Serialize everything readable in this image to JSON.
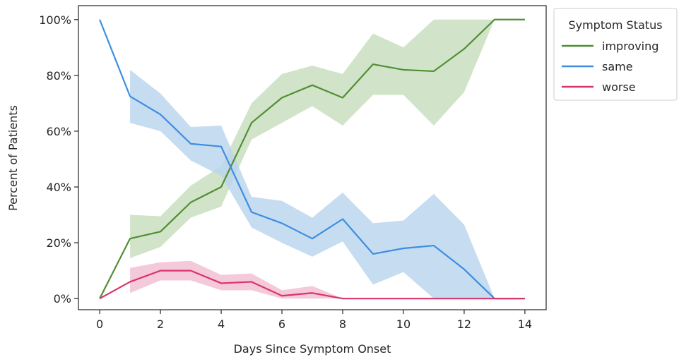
{
  "chart_data": {
    "type": "line",
    "xlabel": "Days Since Symptom Onset",
    "ylabel": "Percent of Patients",
    "xlim": [
      -0.7,
      14.7
    ],
    "ylim": [
      -4,
      105
    ],
    "xticks": [
      0,
      2,
      4,
      6,
      8,
      10,
      12,
      14
    ],
    "yticks": [
      0,
      20,
      40,
      60,
      80,
      100
    ],
    "ytick_labels": [
      "0%",
      "20%",
      "40%",
      "60%",
      "80%",
      "100%"
    ],
    "grid": false,
    "legend": {
      "title": "Symptom Status",
      "placement": "outside-top-right"
    },
    "series": [
      {
        "name": "improving",
        "color": "#4f8f33",
        "band_color": "#c9dfbf",
        "x": [
          0,
          1,
          2,
          3,
          4,
          5,
          6,
          7,
          8,
          9,
          10,
          11,
          12,
          13,
          14
        ],
        "values": [
          0,
          21.5,
          24,
          34.5,
          40,
          63,
          72,
          76.5,
          72,
          84,
          82,
          81.5,
          89.5,
          100,
          100
        ],
        "lower": [
          null,
          14.5,
          18.5,
          29,
          33,
          57,
          63,
          69,
          62,
          73,
          73,
          62,
          74,
          100,
          100
        ],
        "upper": [
          null,
          30,
          29.5,
          40.5,
          47.5,
          70,
          80.5,
          83.5,
          80.5,
          95,
          90,
          100,
          100,
          100,
          100
        ]
      },
      {
        "name": "same",
        "color": "#3d8ee0",
        "band_color": "#bcd6ef",
        "x": [
          0,
          1,
          2,
          3,
          4,
          5,
          6,
          7,
          8,
          9,
          10,
          11,
          12,
          13,
          14
        ],
        "values": [
          100,
          72.5,
          66,
          55.5,
          54.5,
          31,
          27,
          21.5,
          28.5,
          16,
          18,
          19,
          10.5,
          0,
          0
        ],
        "lower": [
          null,
          63,
          60,
          49.5,
          44,
          25.5,
          20,
          15,
          20.5,
          5,
          9.5,
          0,
          0,
          0,
          0
        ],
        "upper": [
          null,
          82,
          73.5,
          61.5,
          62,
          36.5,
          35,
          29,
          38,
          27,
          28,
          37.5,
          26.5,
          0,
          0
        ]
      },
      {
        "name": "worse",
        "color": "#d9336b",
        "band_color": "#f2c0d2",
        "x": [
          0,
          1,
          2,
          3,
          4,
          5,
          6,
          7,
          8,
          9,
          10,
          11,
          12,
          13,
          14
        ],
        "values": [
          0,
          6,
          10,
          10,
          5.5,
          6,
          1,
          2,
          0,
          0,
          0,
          0,
          0,
          0,
          0
        ],
        "lower": [
          null,
          2,
          6.5,
          6.5,
          3,
          3,
          0,
          0,
          0,
          0,
          0,
          0,
          0,
          0,
          0
        ],
        "upper": [
          null,
          11,
          13,
          13.5,
          8.5,
          9,
          3,
          4.5,
          0,
          0,
          0,
          0,
          0,
          0,
          0
        ]
      }
    ]
  }
}
